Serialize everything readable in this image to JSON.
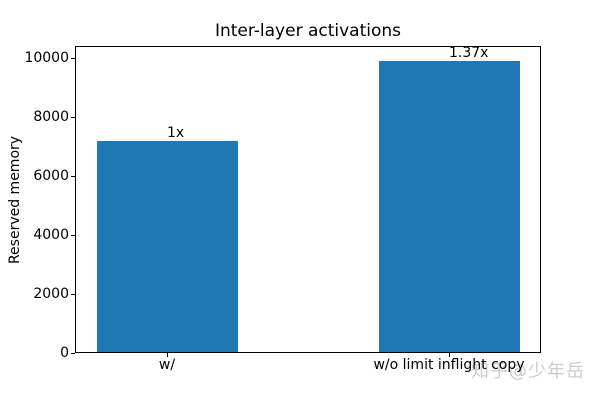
{
  "watermark": {
    "text": "知乎@少年岳",
    "color": "#cccccc"
  },
  "chart_data": {
    "type": "bar",
    "title": "Inter-layer activations",
    "xlabel": "",
    "ylabel": "Reserved memory",
    "categories": [
      "w/",
      "w/o limit inflight copy"
    ],
    "values": [
      7150,
      9850
    ],
    "bar_labels": [
      "1x",
      "1.37x"
    ],
    "bar_color": "#1f77b4",
    "text_color": "#000000",
    "background_color": "#ffffff",
    "ylim": [
      0,
      10000
    ],
    "yticks": [
      0,
      2000,
      4000,
      6000,
      8000,
      10000
    ],
    "grid": false,
    "legend": false,
    "layout_hint": "single axes, full box frame, ticks outward"
  }
}
